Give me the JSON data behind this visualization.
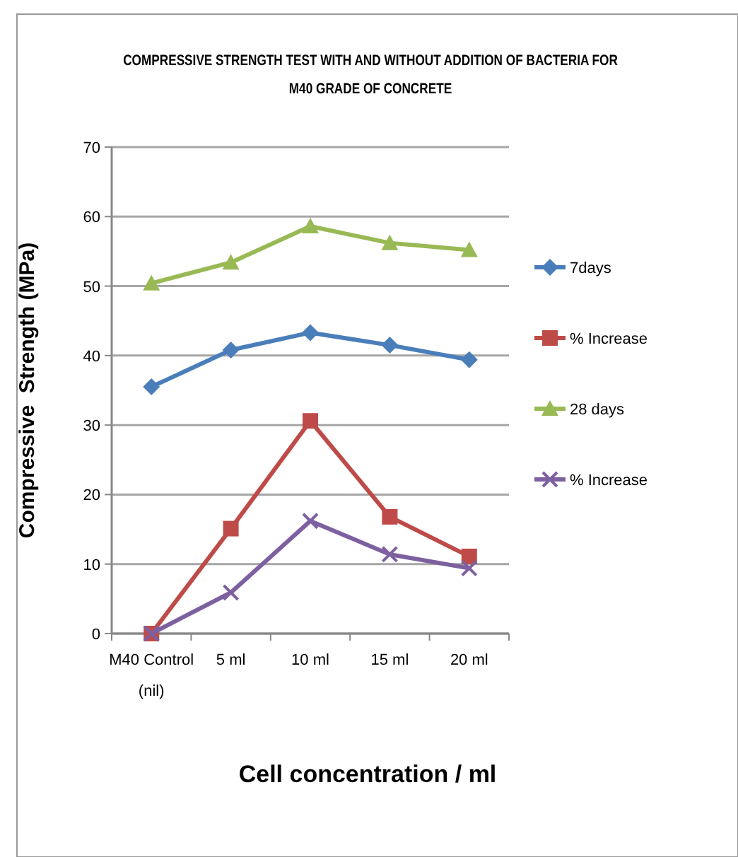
{
  "chart_data": {
    "type": "line",
    "title": "COMPRESSIVE STRENGTH TEST WITH AND WITHOUT ADDITION OF BACTERIA FOR M40 GRADE OF CONCRETE",
    "xlabel": "Cell concentration / ml",
    "ylabel": "Compressive  Strength (MPa)",
    "categories": [
      "M40 Control (nil)",
      "5 ml",
      "10 ml",
      "15 ml",
      "20 ml"
    ],
    "ylim": [
      0,
      70
    ],
    "yticks": [
      0,
      10,
      20,
      30,
      40,
      50,
      60,
      70
    ],
    "grid": "y",
    "legend": "right",
    "series": [
      {
        "name": "7days",
        "color": "#4a7ebb",
        "marker": "diamond",
        "values": [
          35.5,
          40.8,
          43.3,
          41.5,
          39.4
        ]
      },
      {
        "name": "% Increase",
        "color": "#be4b48",
        "marker": "square",
        "values": [
          0,
          15.1,
          30.6,
          16.8,
          11.1
        ]
      },
      {
        "name": "28 days",
        "color": "#98b954",
        "marker": "triangle",
        "values": [
          50.4,
          53.4,
          58.6,
          56.2,
          55.2
        ]
      },
      {
        "name": "% Increase",
        "color": "#7d60a0",
        "marker": "cross",
        "values": [
          0,
          5.9,
          16.2,
          11.4,
          9.4
        ]
      }
    ]
  }
}
